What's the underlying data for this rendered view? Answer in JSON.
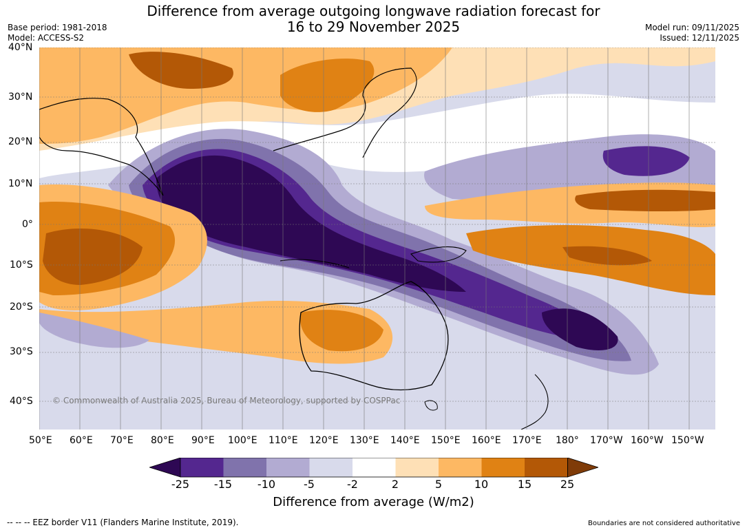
{
  "title_line1": "Difference from average outgoing longwave radiation forecast for",
  "title_line2": "16 to 29 November 2025",
  "base_period": "Base period: 1981-2018",
  "model": "Model: ACCESS-S2",
  "model_run": "Model run: 09/11/2025",
  "issued": "Issued: 12/11/2025",
  "copyright": "© Commonwealth of Australia 2025, Bureau of Meteorology, supported by COSPPac",
  "lat_labels": [
    "40°N",
    "30°N",
    "20°N",
    "10°N",
    "0°",
    "10°S",
    "20°S",
    "30°S",
    "40°S"
  ],
  "lon_labels": [
    "50°E",
    "60°E",
    "70°E",
    "80°E",
    "90°E",
    "100°E",
    "110°E",
    "120°E",
    "130°E",
    "140°E",
    "150°E",
    "160°E",
    "170°E",
    "180°",
    "170°W",
    "160°W",
    "150°W"
  ],
  "colorbar": {
    "title": "Difference from average (W/m2)",
    "ticks": [
      "-25",
      "-15",
      "-10",
      "-5",
      "-2",
      "2",
      "5",
      "10",
      "15",
      "25"
    ],
    "colors": [
      "#2e0854",
      "#54278f",
      "#8073ac",
      "#b2abd2",
      "#d8daeb",
      "#ffffff",
      "#fee0b6",
      "#fdb863",
      "#e08214",
      "#b35806",
      "#7f3b08"
    ]
  },
  "footer_left": "--  --  -- EEZ border V11 (Flanders Marine Institute, 2019).",
  "footer_right": "Boundaries are not considered authoritative"
}
